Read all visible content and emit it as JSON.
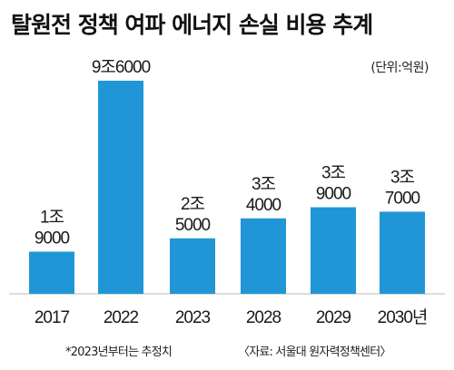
{
  "chart_data": {
    "type": "bar",
    "title": "탈원전 정책 여파 에너지 손실 비용 추계",
    "unit": "(단위:억원)",
    "categories": [
      "2017",
      "2022",
      "2023",
      "2028",
      "2029",
      "2030년"
    ],
    "values": [
      19000,
      96000,
      25000,
      34000,
      39000,
      37000
    ],
    "value_labels": [
      [
        "1조",
        "9000"
      ],
      [
        "9조6000"
      ],
      [
        "2조",
        "5000"
      ],
      [
        "3조",
        "4000"
      ],
      [
        "3조",
        "9000"
      ],
      [
        "3조",
        "7000"
      ]
    ],
    "ylim": [
      0,
      96000
    ],
    "grid": false,
    "legend": "none",
    "bar_color": "#2196d6",
    "footnote": "*2023년부터는 추정치",
    "source": "〈자료: 서울대 원자력정책센터〉"
  }
}
